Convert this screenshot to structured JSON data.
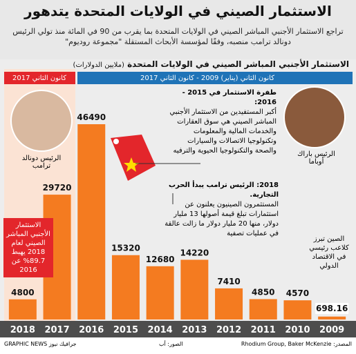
{
  "chart_data": {
    "type": "bar",
    "title": "الاستثمار الصيني في الولايات المتحدة يتدهور",
    "subtitle": "تراجع الاستثمار الأجنبي المباشر الصيني في الولايات المتحدة بما يقرب من 90 في المائة منذ تولي الرئيس دونالد ترامب منصبه، وفقًا لمؤسسة الأبحاث المستقلة \"مجموعة روديوم\"",
    "chart_title": "الاستثمار الأجنبي المباشر الصيني في الولايات المتحدة",
    "unit_label": "(ملايين الدولارات)",
    "periods": [
      "كانون الثاني 2017",
      "كانون الثاني (يناير) 2009 - كانون الثاني 2017"
    ],
    "categories": [
      "2018",
      "2017",
      "2016",
      "2015",
      "2014",
      "2013",
      "2012",
      "2011",
      "2010",
      "2009"
    ],
    "values": [
      4800,
      29720,
      46490,
      15320,
      12680,
      14220,
      7410,
      4850,
      4570,
      698.16
    ],
    "color": "#f47b20",
    "annotations": [
      {
        "title": "طفرة الاستثمار في 2015 - 2016:",
        "text": "أكبر المستفيدين من الاستثمار الأجنبي المباشر الصيني هي سوق العقارات والخدمات المالية والمعلومات وتكنولوجيا الاتصالات والسيارات والصحة والتكنولوجيا الحيوية والترفيه"
      },
      {
        "title": "2018: الرئيس ترامب يبدأ الحرب التجارية.",
        "text": "المستثمرون الصينيون يعلنون عن استثمارات تبلغ قيمة أصولها 13 مليار دولار، منها 20 مليار دولار ما زالت عالقة في عمليات تصفية"
      }
    ],
    "obama_label": "الرئيس باراك أوباما",
    "trump_label": "الرئيس دونالد ترامب",
    "drop_note": "الاستثمار الأجنبي المباشر الصيني لعام 2018 يهبط 89.7% عن 2016",
    "china_note": "الصين تبرز كلاعب رئيسي في الاقتصاد الدولي",
    "source": "المصدر: Rhodium Group, Baker McKenzie",
    "photos": "الصور: أب",
    "credit": "GRAPHIC NEWS جرافيك نيوز"
  }
}
